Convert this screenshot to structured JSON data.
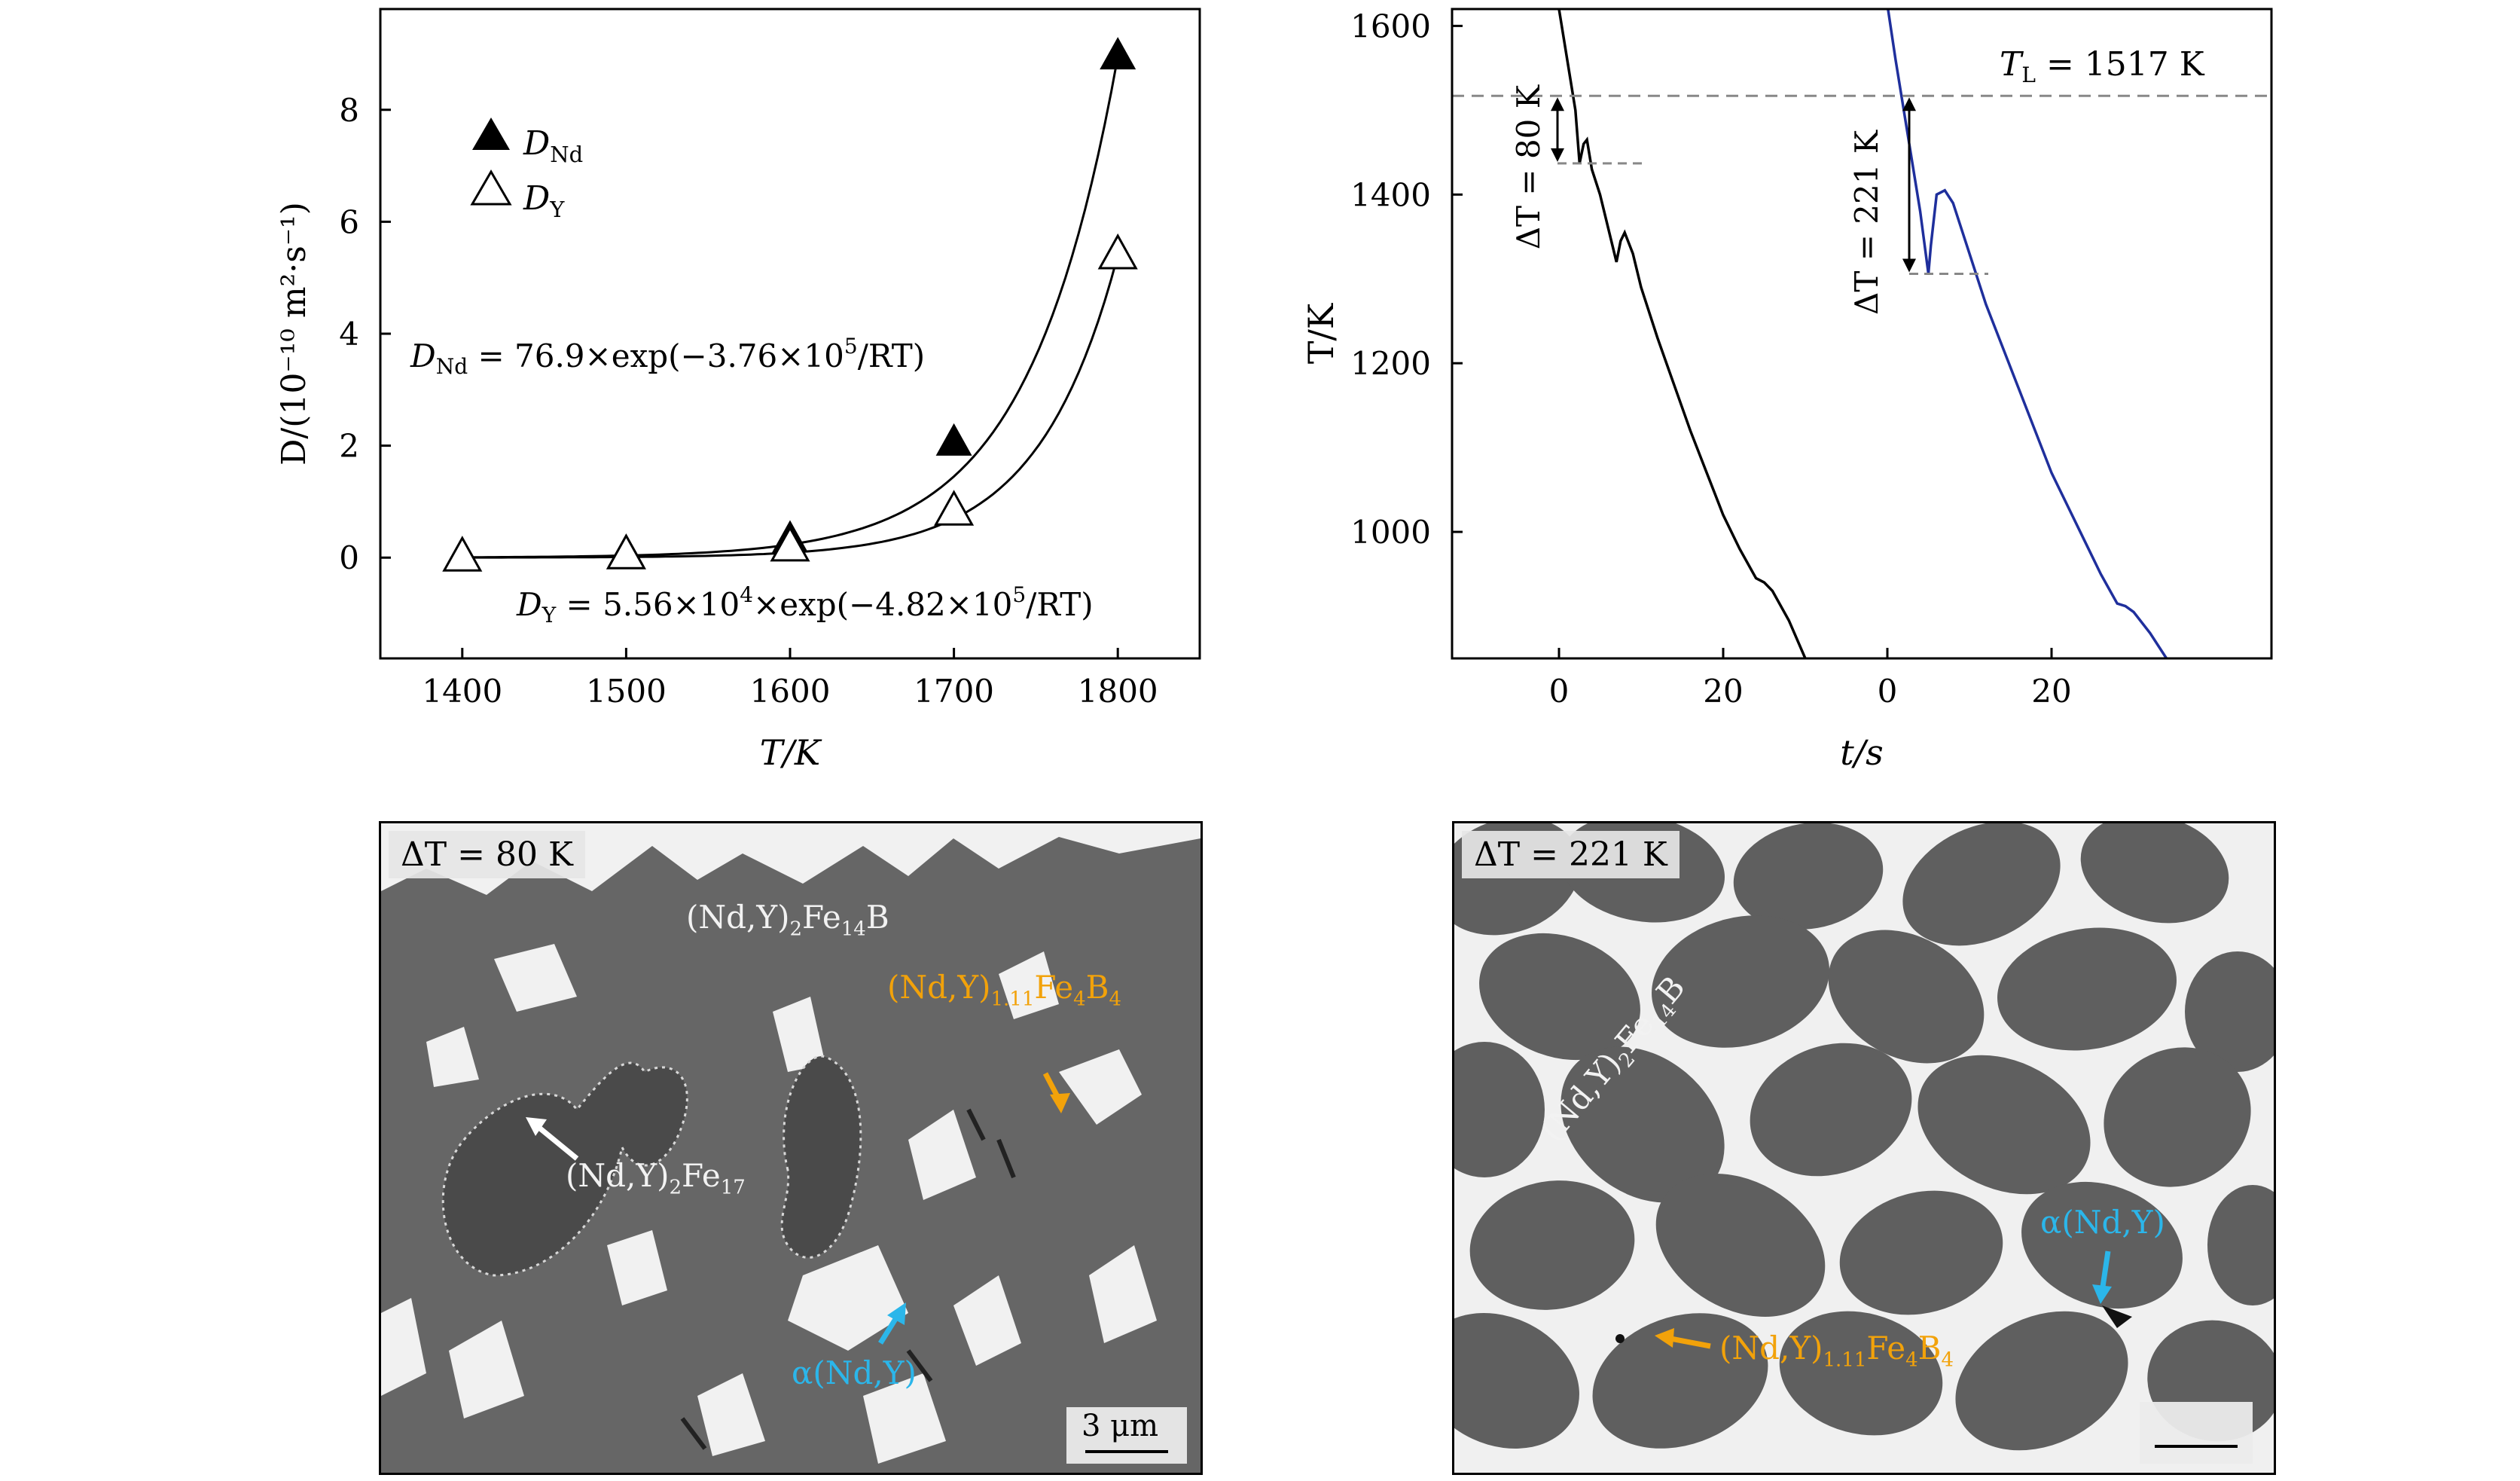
{
  "chart_data": [
    {
      "type": "scatter",
      "xlabel": "T/K",
      "ylabel": "D/(10⁻¹⁰ m²·s⁻¹)",
      "xlim": [
        1350,
        1850
      ],
      "ylim": [
        -1.8,
        9.8
      ],
      "xticks": [
        1400,
        1500,
        1600,
        1700,
        1800
      ],
      "yticks": [
        0,
        2,
        4,
        6,
        8
      ],
      "series": [
        {
          "name": "D_Nd",
          "legend_main": "D",
          "legend_sub": "Nd",
          "marker": "filled-triangle",
          "x": [
            1400,
            1500,
            1600,
            1700,
            1800
          ],
          "y": [
            0.02,
            0.08,
            0.32,
            2.05,
            8.95
          ]
        },
        {
          "name": "D_Y",
          "legend_main": "D",
          "legend_sub": "Y",
          "marker": "open-triangle",
          "x": [
            1400,
            1500,
            1600,
            1700,
            1800
          ],
          "y": [
            0.0,
            0.04,
            0.18,
            0.82,
            5.4
          ]
        }
      ],
      "fit_formulas": {
        "nd": {
          "lhs": "D",
          "sub": "Nd",
          "rhs": " = 76.9×exp(−3.76×10",
          "exp": "5",
          "tail": "/RT)"
        },
        "y": {
          "lhs": "D",
          "sub": "Y",
          "rhs": " = 5.56×10",
          "exp1": "4",
          "mid": "×exp(−4.82×10",
          "exp2": "5",
          "tail": "/RT)"
        }
      }
    },
    {
      "type": "line",
      "xlabel": "t/s",
      "ylabel": "T/K",
      "ylim": [
        850,
        1620
      ],
      "yticks": [
        1000,
        1200,
        1400,
        1600
      ],
      "xticks_curve1": [
        0,
        20
      ],
      "xticks_curve2": [
        0,
        20
      ],
      "liquidus_label": "T",
      "liquidus_sub": "L",
      "liquidus_value": " = 1517 K",
      "liquidus": 1517,
      "annotations": [
        {
          "label": "ΔT = 80 K",
          "top": 1517,
          "bottom": 1437
        },
        {
          "label": "ΔT = 221 K",
          "top": 1517,
          "bottom": 1306
        }
      ],
      "series": [
        {
          "name": "ΔT = 80 K",
          "color": "#000000",
          "t": [
            0,
            1,
            2,
            2.5,
            3,
            3.4,
            4,
            5,
            6,
            7,
            7.5,
            8,
            9,
            10,
            12,
            14,
            16,
            18,
            20,
            22,
            24,
            25,
            26,
            28,
            30
          ],
          "T": [
            1620,
            1560,
            1500,
            1437,
            1460,
            1465,
            1430,
            1400,
            1360,
            1320,
            1345,
            1355,
            1330,
            1290,
            1230,
            1175,
            1120,
            1070,
            1020,
            980,
            945,
            940,
            930,
            895,
            850
          ]
        },
        {
          "name": "ΔT = 221 K",
          "color": "#1f2f9c",
          "t": [
            0,
            1,
            2,
            3,
            4,
            5,
            5.3,
            6,
            7,
            8,
            10,
            12,
            14,
            16,
            18,
            20,
            22,
            24,
            26,
            28,
            29,
            30,
            32,
            34
          ],
          "T": [
            1625,
            1560,
            1500,
            1440,
            1380,
            1306,
            1340,
            1400,
            1405,
            1390,
            1330,
            1270,
            1220,
            1170,
            1120,
            1070,
            1030,
            990,
            950,
            915,
            912,
            905,
            880,
            850
          ]
        }
      ]
    }
  ],
  "micrographs": [
    {
      "badge": "ΔT = 80 K",
      "labels": {
        "nd2fe14b": {
          "main": "(Nd,Y)",
          "s1": "2",
          "mid": "Fe",
          "s2": "14",
          "end": "B"
        },
        "boride": {
          "main": "(Nd,Y)",
          "s1": "1.11",
          "mid": "Fe",
          "s2": "4",
          "end": "B",
          "s3": "4"
        },
        "fe17": {
          "main": "(Nd,Y)",
          "s1": "2",
          "mid": "Fe",
          "s2": "17"
        },
        "alpha": "α(Nd,Y)"
      },
      "scale_bar": "3 μm"
    },
    {
      "badge": "ΔT = 221 K",
      "labels": {
        "nd2fe14b": {
          "main": "(Nd,Y)",
          "s1": "2",
          "mid": "Fe",
          "s2": "14",
          "end": "B"
        },
        "boride": {
          "main": "(Nd,Y)",
          "s1": "1.11",
          "mid": "Fe",
          "s2": "4",
          "end": "B",
          "s3": "4"
        },
        "alpha": "α(Nd,Y)"
      },
      "scale_bar": ""
    }
  ],
  "colors": {
    "orange": "#f2a20a",
    "cyan": "#2bb6ea",
    "white_label": "#f2f2f2"
  }
}
